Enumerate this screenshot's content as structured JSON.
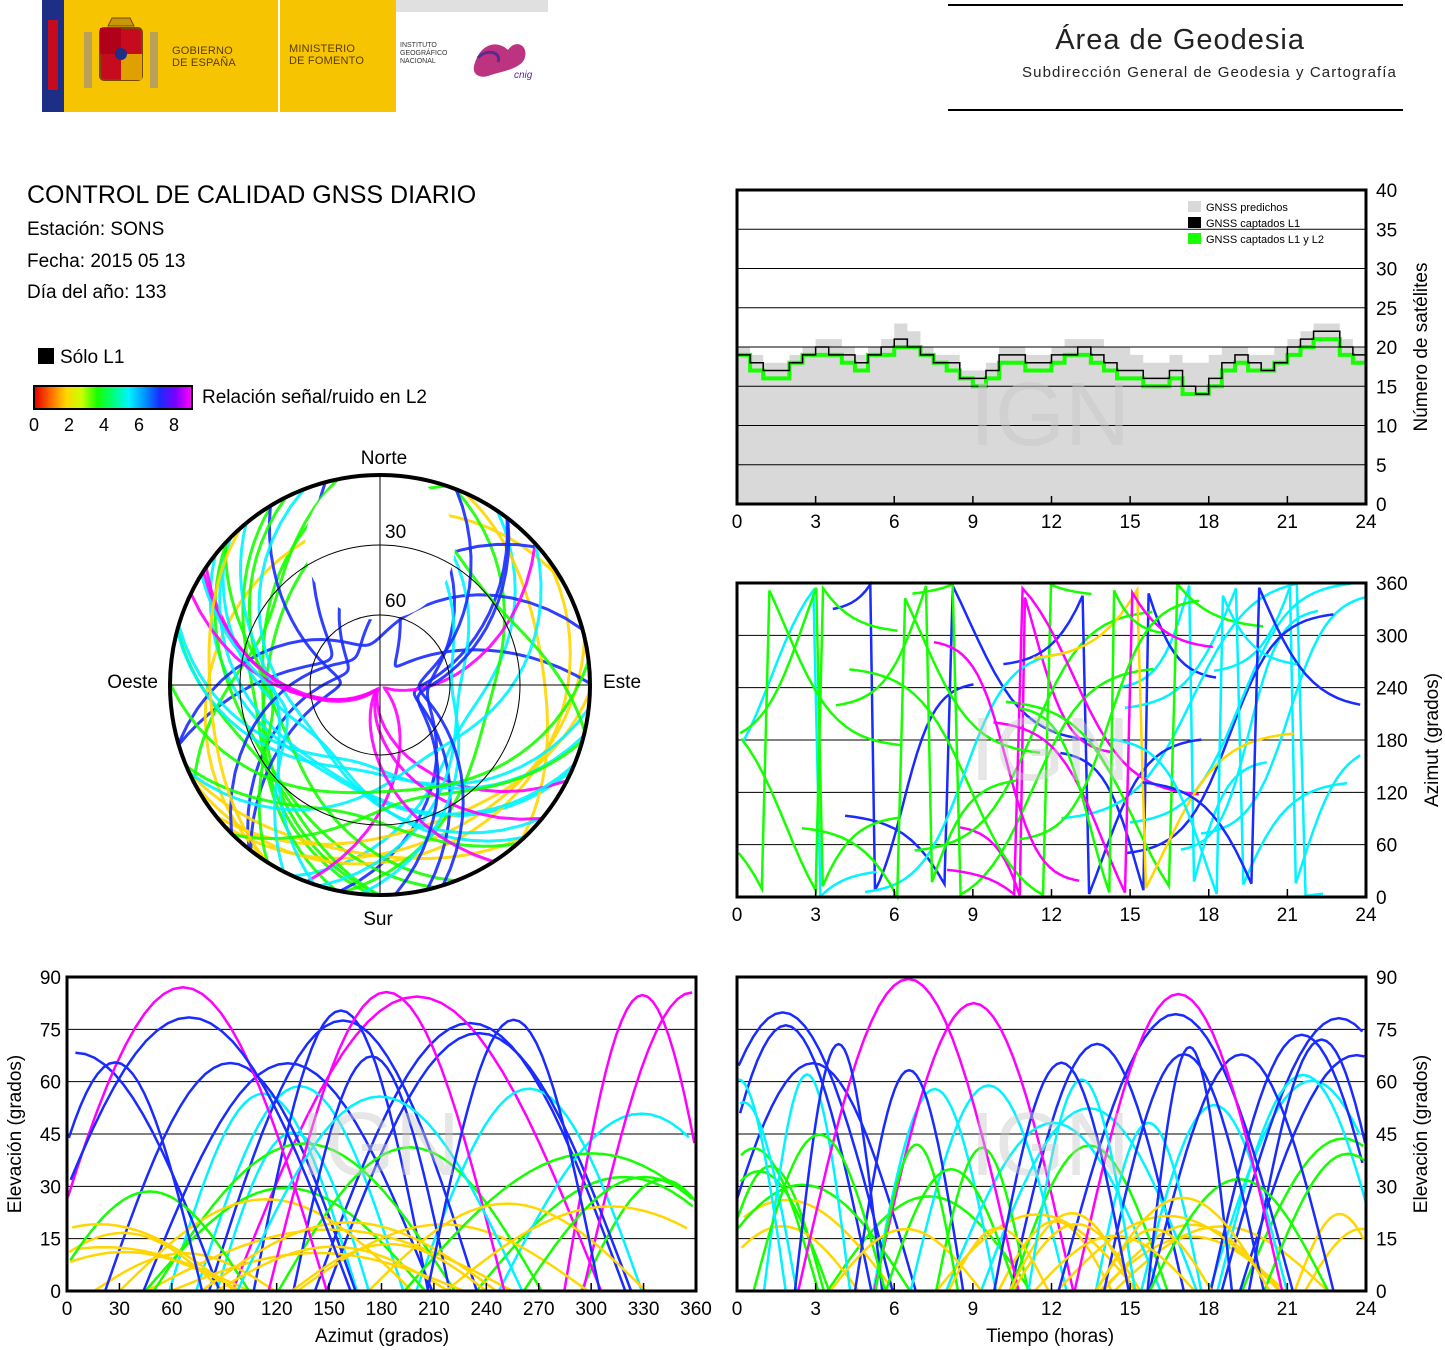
{
  "header": {
    "gov_label_1": "GOBIERNO",
    "gov_label_2": "DE ESPAÑA",
    "ministry_label_1": "MINISTERIO",
    "ministry_label_2": "DE FOMENTO",
    "ign_label_1": "INSTITUTO",
    "ign_label_2": "GEOGRÁFICO",
    "ign_label_3": "NACIONAL",
    "cnig_label": "cnig",
    "area_title": "Área de Geodesia",
    "area_subtitle": "Subdirección General de Geodesia y Cartografía"
  },
  "info": {
    "title": "CONTROL DE CALIDAD GNSS DIARIO",
    "station": "Estación: SONS",
    "date": "Fecha: 2015 05 13",
    "doy": "Día del año: 133"
  },
  "legend": {
    "l1_only": "Sólo L1",
    "snr_label": "Relación señal/ruido en L2",
    "snr_ticks": [
      "0",
      "2",
      "4",
      "6",
      "8"
    ],
    "snr_colors": [
      "#e50000",
      "#ffd600",
      "#16ff00",
      "#00f3ff",
      "#1a2bff",
      "#ff00ff"
    ]
  },
  "watermark": "IGN",
  "colors": {
    "predicted": "#d9d9d9",
    "l1": "#000000",
    "l1l2": "#16ff00"
  },
  "chart_data": [
    {
      "type": "area",
      "id": "satellites",
      "ylabel": "Número de satélites",
      "xlim": [
        0,
        24
      ],
      "ylim": [
        0,
        40
      ],
      "xticks": [
        "0",
        "3",
        "6",
        "9",
        "12",
        "15",
        "18",
        "21",
        "24"
      ],
      "yticks": [
        "0",
        "5",
        "10",
        "15",
        "20",
        "25",
        "30",
        "35",
        "40"
      ],
      "grid": true,
      "legend_position": "top-right",
      "series": [
        {
          "name": "GNSS predichos",
          "x": [
            0,
            0.5,
            1,
            1.5,
            2,
            2.5,
            3,
            3.5,
            4,
            4.5,
            5,
            5.5,
            6,
            6.5,
            7,
            7.5,
            8,
            8.5,
            9,
            9.5,
            10,
            10.5,
            11,
            11.5,
            12,
            12.5,
            13,
            13.5,
            14,
            14.5,
            15,
            15.5,
            16,
            16.5,
            17,
            17.5,
            18,
            18.5,
            19,
            19.5,
            20,
            20.5,
            21,
            21.5,
            22,
            22.5,
            23,
            23.5,
            24
          ],
          "values": [
            20,
            19,
            18,
            18,
            19,
            20,
            21,
            21,
            20,
            19,
            20,
            21,
            23,
            22,
            20,
            19,
            19,
            17,
            17,
            18,
            20,
            20,
            19,
            19,
            20,
            21,
            21,
            21,
            20,
            20,
            19,
            18,
            18,
            19,
            18,
            18,
            19,
            20,
            20,
            19,
            19,
            20,
            21,
            22,
            23,
            23,
            21,
            20,
            20
          ]
        },
        {
          "name": "GNSS captados L1",
          "x": [
            0,
            0.5,
            1,
            1.5,
            2,
            2.5,
            3,
            3.5,
            4,
            4.5,
            5,
            5.5,
            6,
            6.5,
            7,
            7.5,
            8,
            8.5,
            9,
            9.5,
            10,
            10.5,
            11,
            11.5,
            12,
            12.5,
            13,
            13.5,
            14,
            14.5,
            15,
            15.5,
            16,
            16.5,
            17,
            17.5,
            18,
            18.5,
            19,
            19.5,
            20,
            20.5,
            21,
            21.5,
            22,
            22.5,
            23,
            23.5,
            24
          ],
          "values": [
            19,
            18,
            17,
            17,
            18,
            19,
            20,
            19,
            19,
            18,
            19,
            20,
            21,
            20,
            19,
            18,
            18,
            16,
            16,
            17,
            19,
            19,
            18,
            18,
            19,
            19,
            20,
            19,
            18,
            17,
            17,
            16,
            16,
            17,
            15,
            14,
            16,
            18,
            19,
            18,
            17,
            18,
            20,
            21,
            22,
            22,
            20,
            19,
            19
          ]
        },
        {
          "name": "GNSS captados L1 y L2",
          "x": [
            0,
            0.5,
            1,
            1.5,
            2,
            2.5,
            3,
            3.5,
            4,
            4.5,
            5,
            5.5,
            6,
            6.5,
            7,
            7.5,
            8,
            8.5,
            9,
            9.5,
            10,
            10.5,
            11,
            11.5,
            12,
            12.5,
            13,
            13.5,
            14,
            14.5,
            15,
            15.5,
            16,
            16.5,
            17,
            17.5,
            18,
            18.5,
            19,
            19.5,
            20,
            20.5,
            21,
            21.5,
            22,
            22.5,
            23,
            23.5,
            24
          ],
          "values": [
            19,
            17,
            16,
            16,
            18,
            19,
            19,
            19,
            18,
            17,
            19,
            19,
            20,
            20,
            19,
            18,
            17,
            16,
            15,
            16,
            18,
            18,
            17,
            17,
            18,
            19,
            19,
            18,
            17,
            16,
            16,
            15,
            15,
            16,
            14,
            14,
            15,
            17,
            18,
            17,
            17,
            18,
            19,
            20,
            21,
            21,
            19,
            18,
            18
          ]
        }
      ]
    },
    {
      "type": "scatter",
      "id": "skyplot",
      "direction_labels": {
        "north": "Norte",
        "south": "Sur",
        "east": "Este",
        "west": "Oeste"
      },
      "ring_labels": [
        "30",
        "60"
      ],
      "rings_elevation": [
        30,
        60
      ]
    },
    {
      "type": "scatter",
      "id": "azimuth_time",
      "ylabel": "Azimut (grados)",
      "xlim": [
        0,
        24
      ],
      "ylim": [
        0,
        360
      ],
      "xticks": [
        "0",
        "3",
        "6",
        "9",
        "12",
        "15",
        "18",
        "21",
        "24"
      ],
      "yticks": [
        "0",
        "60",
        "120",
        "180",
        "240",
        "300",
        "360"
      ],
      "grid": true
    },
    {
      "type": "scatter",
      "id": "elevation_azimuth",
      "xlabel": "Azimut (grados)",
      "ylabel": "Elevación (grados)",
      "xlim": [
        0,
        360
      ],
      "ylim": [
        0,
        90
      ],
      "xticks": [
        "0",
        "30",
        "60",
        "90",
        "120",
        "150",
        "180",
        "210",
        "240",
        "270",
        "300",
        "330",
        "360"
      ],
      "yticks": [
        "0",
        "15",
        "30",
        "45",
        "60",
        "75",
        "90"
      ],
      "grid": true
    },
    {
      "type": "scatter",
      "id": "elevation_time",
      "xlabel": "Tiempo (horas)",
      "ylabel": "Elevación (grados)",
      "xlim": [
        0,
        24
      ],
      "ylim": [
        0,
        90
      ],
      "xticks": [
        "0",
        "3",
        "6",
        "9",
        "12",
        "15",
        "18",
        "21",
        "24"
      ],
      "yticks": [
        "0",
        "15",
        "30",
        "45",
        "60",
        "75",
        "90"
      ],
      "grid": true
    }
  ]
}
